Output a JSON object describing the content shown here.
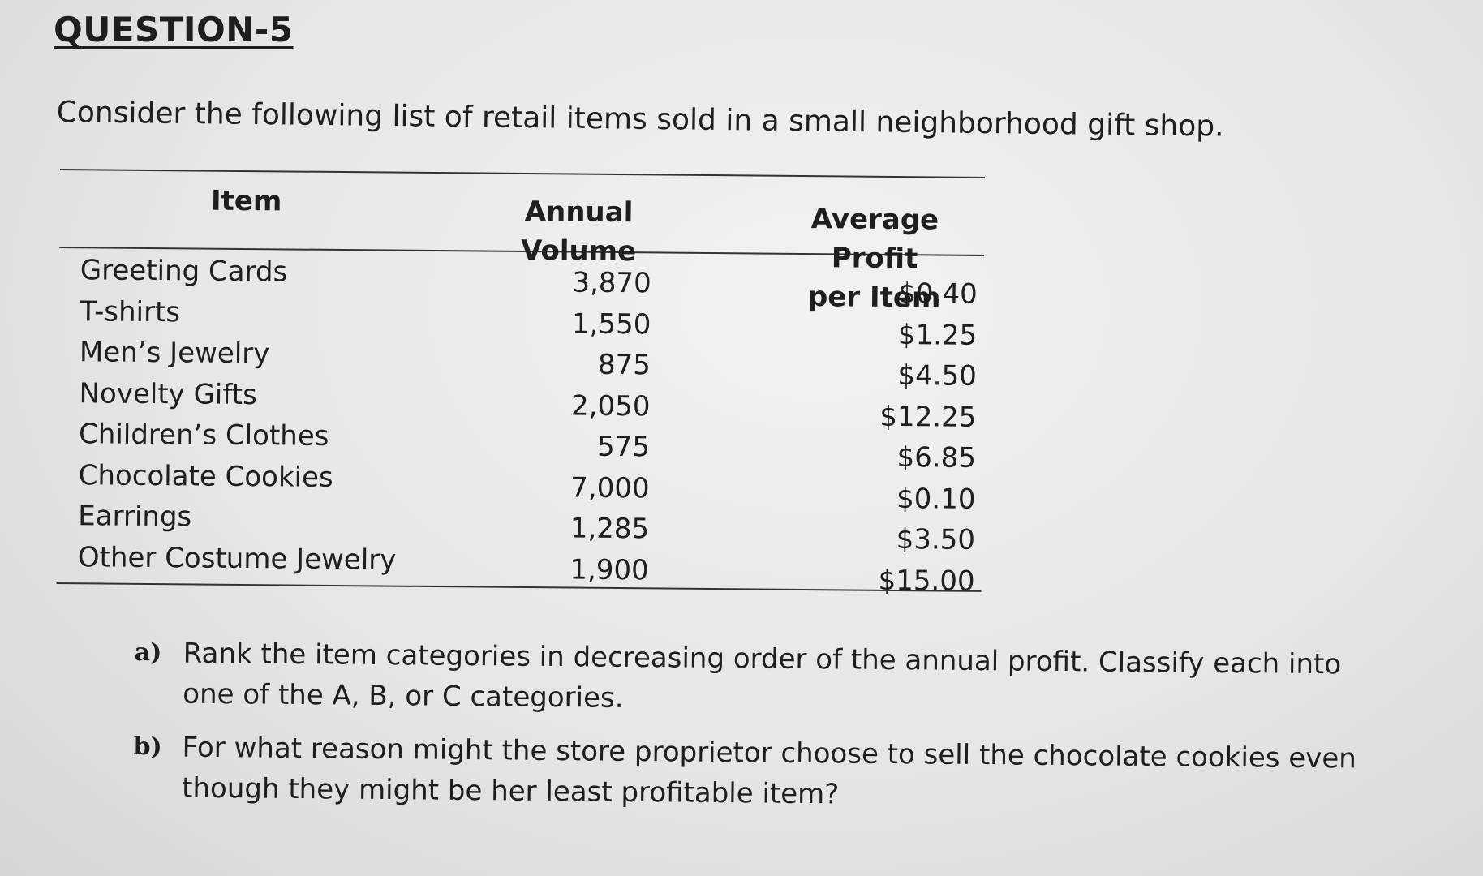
{
  "question_title": "QUESTION-5",
  "intro": "Consider the following list of retail items sold in a small neighborhood gift shop.",
  "table": {
    "headers": {
      "item": "Item",
      "volume_line1": "Annual",
      "volume_line2": "Volume",
      "profit_line1": "Average Profit",
      "profit_line2": "per Item"
    },
    "rows": [
      {
        "item": "Greeting Cards",
        "volume": "3,870",
        "profit": "$0.40"
      },
      {
        "item": "T-shirts",
        "volume": "1,550",
        "profit": "$1.25"
      },
      {
        "item": "Men’s Jewelry",
        "volume": "875",
        "profit": "$4.50"
      },
      {
        "item": "Novelty Gifts",
        "volume": "2,050",
        "profit": "$12.25"
      },
      {
        "item": "Children’s Clothes",
        "volume": "575",
        "profit": "$6.85"
      },
      {
        "item": "Chocolate Cookies",
        "volume": "7,000",
        "profit": "$0.10"
      },
      {
        "item": "Earrings",
        "volume": "1,285",
        "profit": "$3.50"
      },
      {
        "item": "Other Costume Jewelry",
        "volume": "1,900",
        "profit": "$15.00"
      }
    ]
  },
  "questions": [
    {
      "letter": "a)",
      "text": "Rank the item categories in decreasing order of the annual profit. Classify each into one of the A, B, or C categories."
    },
    {
      "letter": "b)",
      "text": "For what reason might the store proprietor choose to sell the chocolate cookies even though they might be her least profitable item?"
    }
  ]
}
